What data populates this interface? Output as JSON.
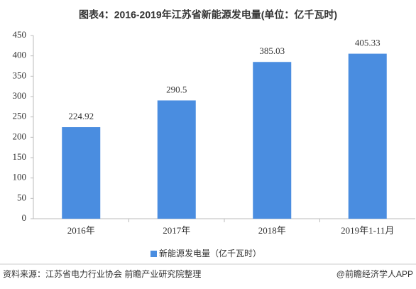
{
  "chart_data": {
    "type": "bar",
    "title": "图表4：2016-2019年江苏省新能源发电量(单位：亿千瓦时)",
    "categories": [
      "2016年",
      "2017年",
      "2018年",
      "2019年1-11月"
    ],
    "series": [
      {
        "name": "新能源发电量（亿千瓦时）",
        "color": "#4a8de0",
        "values": [
          224.92,
          290.5,
          385.03,
          405.33
        ]
      }
    ],
    "ylim": [
      0,
      450
    ],
    "yticks": [
      0,
      50,
      100,
      150,
      200,
      250,
      300,
      350,
      400,
      450
    ],
    "grid": false,
    "legend": "bottom",
    "source": "资料来源：江苏省电力行业协会 前瞻产业研究院整理",
    "credit": "@前瞻经济学人APP"
  }
}
